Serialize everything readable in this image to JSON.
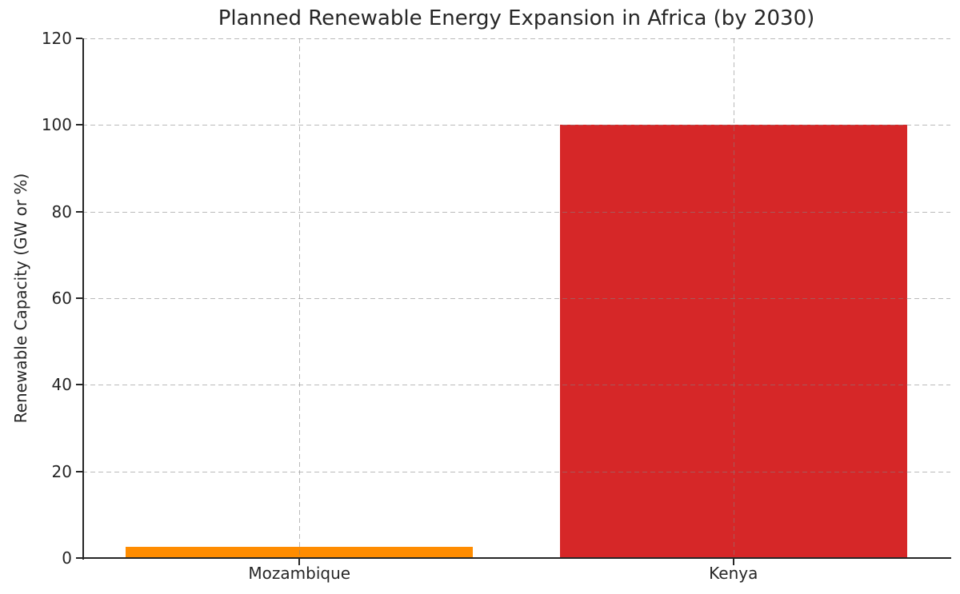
{
  "chart_data": {
    "type": "bar",
    "title": "Planned Renewable Energy Expansion in Africa (by 2030)",
    "xlabel": "",
    "ylabel": "Renewable Capacity (GW or %)",
    "categories": [
      "Mozambique",
      "Kenya"
    ],
    "values": [
      2.5,
      100
    ],
    "bar_colors": [
      "#ff8c00",
      "#d62728"
    ],
    "ylim": [
      0,
      120
    ],
    "yticks": [
      0,
      20,
      40,
      60,
      80,
      100,
      120
    ],
    "grid": {
      "style": "dashed",
      "axes": "both",
      "color": "#c8c8c8",
      "drawn_above_bars": true
    },
    "legend": null,
    "background_color": "#ffffff",
    "axis_color": "#262626",
    "text_color": "#262626",
    "bar_width_fraction": 0.8
  }
}
